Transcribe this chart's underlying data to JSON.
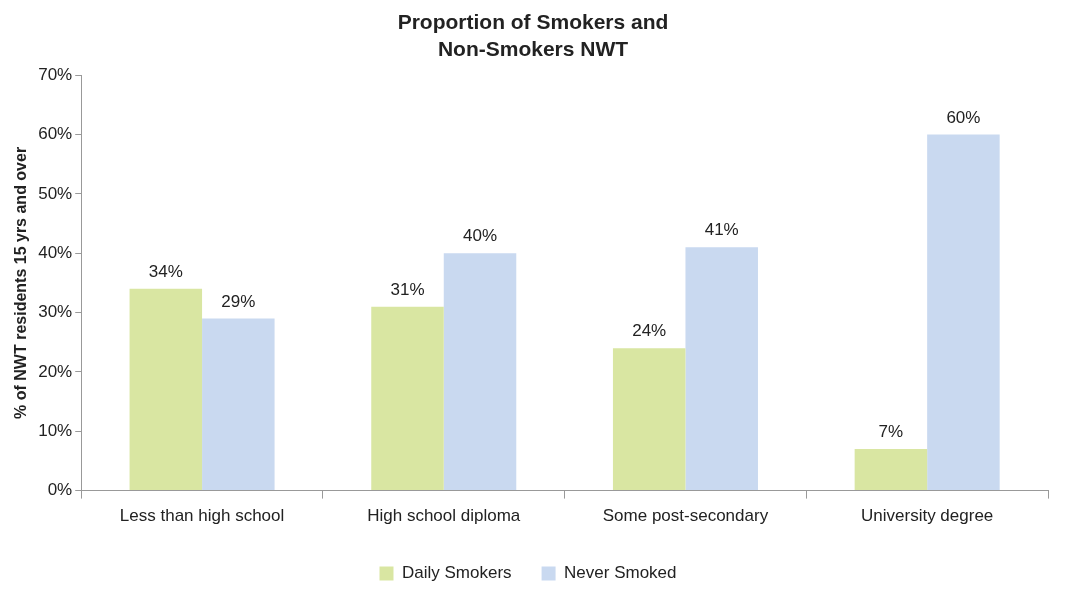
{
  "chart_data": {
    "type": "bar",
    "title": "Proportion of Smokers and Non-Smokers NWT",
    "ylabel": "% of NWT residents 15 yrs and over",
    "categories": [
      "Less than high school",
      "High school diploma",
      "Some post-secondary",
      "University degree"
    ],
    "series": [
      {
        "name": "Daily Smokers",
        "color": "#d9e6a2",
        "values": [
          34,
          31,
          24,
          7
        ],
        "value_labels": [
          "34%",
          "31%",
          "24%",
          "7%"
        ]
      },
      {
        "name": "Never Smoked",
        "color": "#c9d9f0",
        "values": [
          29,
          40,
          41,
          60
        ],
        "value_labels": [
          "29%",
          "40%",
          "41%",
          "60%"
        ]
      }
    ],
    "ylim": [
      0,
      70
    ],
    "yticks": [
      {
        "value": 0,
        "label": "0%"
      },
      {
        "value": 10,
        "label": "10%"
      },
      {
        "value": 20,
        "label": "20%"
      },
      {
        "value": 30,
        "label": "30%"
      },
      {
        "value": 40,
        "label": "40%"
      },
      {
        "value": 50,
        "label": "50%"
      },
      {
        "value": 60,
        "label": "60%"
      },
      {
        "value": 70,
        "label": "70%"
      }
    ],
    "grid": false,
    "legend": "bottom"
  }
}
